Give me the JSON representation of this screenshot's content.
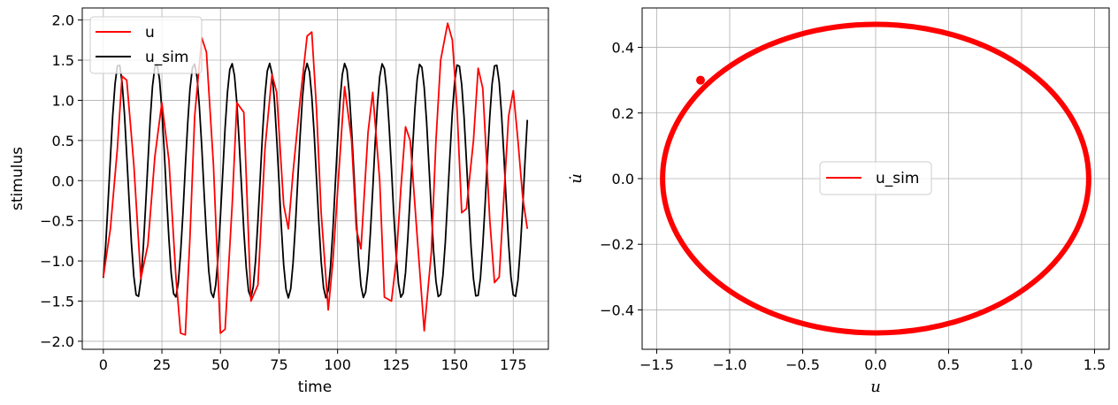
{
  "chart_data": [
    {
      "type": "line",
      "xlabel": "time",
      "ylabel": "stimulus",
      "xlim": [
        -9,
        190
      ],
      "ylim": [
        -2.1,
        2.15
      ],
      "xticks": [
        0,
        25,
        50,
        75,
        100,
        125,
        150,
        175
      ],
      "xtick_labels": [
        "0",
        "25",
        "50",
        "75",
        "100",
        "125",
        "150",
        "175"
      ],
      "yticks": [
        -2.0,
        -1.5,
        -1.0,
        -0.5,
        0.0,
        0.5,
        1.0,
        1.5,
        2.0
      ],
      "ytick_labels": [
        "−2.0",
        "−1.5",
        "−1.0",
        "−0.5",
        "0.0",
        "0.5",
        "1.0",
        "1.5",
        "2.0"
      ],
      "grid": true,
      "legend_position": "top-left",
      "series": [
        {
          "name": "u",
          "color": "#ff0000",
          "x": [
            0,
            3,
            6,
            8,
            10,
            13,
            16,
            19,
            22,
            25,
            28,
            31,
            33,
            35,
            37,
            39,
            42,
            44,
            47,
            50,
            52,
            55,
            57,
            60,
            63,
            66,
            69,
            72,
            74,
            77,
            79,
            81,
            84,
            87,
            89,
            91,
            93,
            96,
            98,
            101,
            103,
            106,
            108,
            110,
            113,
            115,
            118,
            120,
            123,
            125,
            127,
            129,
            131,
            134,
            137,
            140,
            142,
            144,
            147,
            149,
            151,
            153,
            155,
            158,
            160,
            162,
            165,
            167,
            169,
            171,
            173,
            175,
            177,
            179,
            181
          ],
          "values": [
            -1.2,
            -0.6,
            0.4,
            1.3,
            1.25,
            0.2,
            -1.22,
            -0.8,
            0.3,
            0.97,
            0.25,
            -1.2,
            -1.9,
            -1.92,
            -0.7,
            0.8,
            1.78,
            1.6,
            0.2,
            -1.9,
            -1.85,
            -0.3,
            0.97,
            0.85,
            -1.5,
            -1.3,
            0.4,
            1.32,
            1.1,
            -0.3,
            -0.6,
            0.1,
            1.0,
            1.8,
            1.85,
            0.9,
            -0.4,
            -1.61,
            -1.0,
            0.3,
            1.17,
            0.5,
            -0.6,
            -0.85,
            0.6,
            1.1,
            0.0,
            -1.45,
            -1.5,
            -1.0,
            -0.1,
            0.67,
            0.5,
            -0.7,
            -1.87,
            -0.9,
            0.5,
            1.5,
            1.96,
            1.75,
            0.9,
            -0.4,
            -0.35,
            0.5,
            1.4,
            1.15,
            -0.5,
            -1.27,
            -1.2,
            -0.2,
            0.8,
            1.12,
            0.5,
            -0.2,
            -0.6
          ],
          "legend": "u"
        },
        {
          "name": "u_sim",
          "color": "#000000",
          "period": 16.1,
          "amplitude": 1.46,
          "phase_deg": -56,
          "x_range": [
            0,
            181
          ],
          "legend": "u_sim"
        }
      ]
    },
    {
      "type": "scatter",
      "xlabel": "u",
      "ylabel": "u̇",
      "xlim": [
        -1.6,
        1.6
      ],
      "ylim": [
        -0.52,
        0.52
      ],
      "xticks": [
        -1.5,
        -1.0,
        -0.5,
        0.0,
        0.5,
        1.0,
        1.5
      ],
      "xtick_labels": [
        "−1.5",
        "−1.0",
        "−0.5",
        "0.0",
        "0.5",
        "1.0",
        "1.5"
      ],
      "yticks": [
        -0.4,
        -0.2,
        0.0,
        0.2,
        0.4
      ],
      "ytick_labels": [
        "−0.4",
        "−0.2",
        "0.0",
        "0.2",
        "0.4"
      ],
      "grid": true,
      "legend_position": "center",
      "series": [
        {
          "name": "u_sim",
          "color": "#ff0000",
          "description": "ellipse trajectory",
          "u_amplitude": 1.46,
          "udot_amplitude": 0.47,
          "start_point": [
            -1.2,
            0.3
          ],
          "legend": "u_sim"
        }
      ]
    }
  ]
}
